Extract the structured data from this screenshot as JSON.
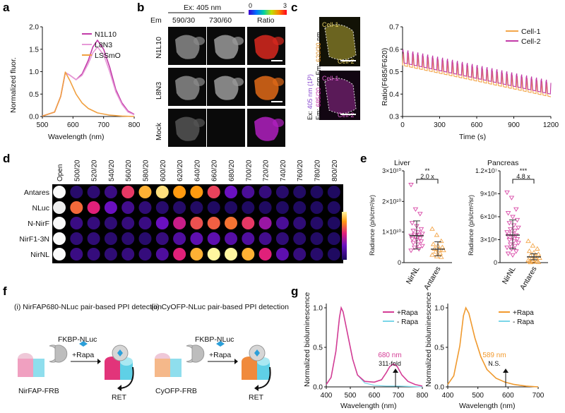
{
  "panel_labels": [
    "a",
    "b",
    "c",
    "d",
    "e",
    "f",
    "g"
  ],
  "chart_data": [
    {
      "id": "a",
      "type": "line",
      "xlabel": "Wavelength (nm)",
      "ylabel": "Normalized fluor.",
      "xlim": [
        500,
        800
      ],
      "ylim": [
        0,
        2.0
      ],
      "xticks": [
        "500",
        "600",
        "700",
        "800"
      ],
      "yticks": [
        "0.0",
        "0.5",
        "1.0",
        "1.5",
        "2.0"
      ],
      "series": [
        {
          "name": "N1L10",
          "color": "#c23aa8",
          "points": [
            [
              500,
              0.01
            ],
            [
              540,
              0.1
            ],
            [
              560,
              0.45
            ],
            [
              575,
              0.98
            ],
            [
              590,
              0.92
            ],
            [
              610,
              0.82
            ],
            [
              630,
              0.95
            ],
            [
              650,
              1.25
            ],
            [
              665,
              1.55
            ],
            [
              680,
              1.7
            ],
            [
              700,
              1.5
            ],
            [
              720,
              1.1
            ],
            [
              740,
              0.6
            ],
            [
              760,
              0.3
            ],
            [
              780,
              0.12
            ],
            [
              800,
              0.05
            ]
          ]
        },
        {
          "name": "L8N3",
          "color": "#e79ad8",
          "points": [
            [
              500,
              0.01
            ],
            [
              540,
              0.1
            ],
            [
              560,
              0.45
            ],
            [
              575,
              0.98
            ],
            [
              590,
              0.92
            ],
            [
              610,
              0.82
            ],
            [
              630,
              0.92
            ],
            [
              650,
              1.18
            ],
            [
              665,
              1.42
            ],
            [
              680,
              1.55
            ],
            [
              700,
              1.38
            ],
            [
              720,
              1.0
            ],
            [
              740,
              0.55
            ],
            [
              760,
              0.27
            ],
            [
              780,
              0.1
            ],
            [
              800,
              0.04
            ]
          ]
        },
        {
          "name": "LSSmO",
          "color": "#f0a040",
          "points": [
            [
              500,
              0.01
            ],
            [
              540,
              0.1
            ],
            [
              560,
              0.45
            ],
            [
              575,
              0.99
            ],
            [
              590,
              0.8
            ],
            [
              610,
              0.5
            ],
            [
              630,
              0.3
            ],
            [
              650,
              0.18
            ],
            [
              680,
              0.08
            ],
            [
              720,
              0.03
            ],
            [
              760,
              0.01
            ],
            [
              800,
              0.0
            ]
          ]
        }
      ]
    },
    {
      "id": "b",
      "type": "table",
      "title": "Ex: 405 nm",
      "em_label": "Em",
      "columns": [
        "590/30",
        "730/60"
      ],
      "ratio_label": "Ratio",
      "ratio_range": [
        "0",
        "3"
      ],
      "rows": [
        "N1L10",
        "L8N3",
        "Mock"
      ]
    },
    {
      "id": "c",
      "type": "line",
      "image_cells": [
        "Cell-1",
        "Cell-2"
      ],
      "side_label_parts": [
        "Ex: ",
        "405 nm (1P)",
        "Em: ",
        "685/20",
        " nm Em: ",
        "620/30",
        " nm"
      ],
      "xlabel": "Time (s)",
      "ylabel": "Ratio(F685/F620)",
      "xlim": [
        0,
        1200
      ],
      "ylim": [
        0.3,
        0.7
      ],
      "xticks": [
        "0",
        "300",
        "600",
        "900",
        "1200"
      ],
      "yticks": [
        "0.3",
        "0.4",
        "0.5",
        "0.6",
        "0.7"
      ],
      "series": [
        {
          "name": "Cell-1",
          "color": "#f3a64a"
        },
        {
          "name": "Cell-2",
          "color": "#c23aa8"
        }
      ]
    },
    {
      "id": "d",
      "type": "heatmap",
      "columns": [
        "Open",
        "500/20",
        "520/20",
        "540/20",
        "560/20",
        "580/20",
        "600/20",
        "620/20",
        "640/20",
        "660/20",
        "680/20",
        "700/20",
        "720/20",
        "740/20",
        "760/20",
        "780/20",
        "800/20"
      ],
      "rows": [
        "Antares",
        "NLuc",
        "N-NirF",
        "NirF1-3N",
        "NirNL"
      ],
      "values": [
        [
          1.0,
          0.05,
          0.07,
          0.12,
          0.6,
          0.85,
          0.95,
          0.8,
          0.8,
          0.62,
          0.3,
          0.18,
          0.1,
          0.05,
          0.03,
          0.02,
          0.02
        ],
        [
          0.9,
          0.7,
          0.55,
          0.3,
          0.15,
          0.08,
          0.05,
          0.04,
          0.03,
          0.02,
          0.02,
          0.02,
          0.02,
          0.02,
          0.02,
          0.02,
          0.02
        ],
        [
          1.0,
          0.12,
          0.1,
          0.08,
          0.1,
          0.12,
          0.3,
          0.5,
          0.65,
          0.68,
          0.72,
          0.6,
          0.4,
          0.18,
          0.08,
          0.04,
          0.02
        ],
        [
          1.0,
          0.08,
          0.08,
          0.06,
          0.06,
          0.05,
          0.1,
          0.2,
          0.25,
          0.25,
          0.22,
          0.2,
          0.15,
          0.08,
          0.05,
          0.03,
          0.02
        ],
        [
          1.0,
          0.12,
          0.1,
          0.08,
          0.1,
          0.1,
          0.2,
          0.55,
          0.85,
          1.0,
          1.0,
          0.85,
          0.55,
          0.25,
          0.1,
          0.05,
          0.02
        ]
      ]
    },
    {
      "id": "e1",
      "type": "scatter",
      "title": "Liver",
      "ylabel": "Radiance (p/s/cm²/sr)",
      "ylim": [
        0,
        30000000000.0
      ],
      "yticks": [
        "0",
        "1×10¹⁰",
        "2×10¹⁰",
        "3×10¹⁰"
      ],
      "categories": [
        "NirNL",
        "Antares"
      ],
      "means": [
        8800000000.0,
        4400000000.0
      ],
      "significance": "**",
      "fold": "2.0 x",
      "series": [
        {
          "name": "NirNL",
          "color": "#d94aa8",
          "values": [
            25500000000.0,
            17500000000.0,
            16000000000.0,
            13000000000.0,
            12000000000.0,
            11000000000.0,
            10500000000.0,
            10000000000.0,
            9500000000.0,
            9200000000.0,
            9000000000.0,
            8800000000.0,
            8500000000.0,
            8000000000.0,
            7800000000.0,
            7500000000.0,
            7000000000.0,
            6500000000.0,
            6000000000.0,
            5500000000.0,
            5000000000.0,
            4500000000.0,
            4000000000.0
          ]
        },
        {
          "name": "Antares",
          "color": "#f3a64a",
          "values": [
            11000000000.0,
            9000000000.0,
            7000000000.0,
            6000000000.0,
            5500000000.0,
            5000000000.0,
            4500000000.0,
            4200000000.0,
            4000000000.0,
            3500000000.0,
            3000000000.0,
            2500000000.0,
            2000000000.0,
            1800000000.0
          ]
        }
      ]
    },
    {
      "id": "e2",
      "type": "scatter",
      "title": "Pancreas",
      "ylabel": "Radiance (p/s/cm²/sr)",
      "ylim": [
        0,
        12000000.0
      ],
      "yticks": [
        "0",
        "3×10⁶",
        "6×10⁶",
        "9×10⁶",
        "1.2×10⁷"
      ],
      "categories": [
        "NirNL",
        "Antares"
      ],
      "means": [
        3600000.0,
        750000.0
      ],
      "significance": "***",
      "fold": "4.8 x",
      "series": [
        {
          "name": "NirNL",
          "color": "#d94aa8",
          "values": [
            9200000.0,
            8500000.0,
            7000000.0,
            6500000.0,
            6000000.0,
            5600000.0,
            5200000.0,
            4900000.0,
            4600000.0,
            4400000.0,
            4200000.0,
            4000000.0,
            3800000.0,
            3600000.0,
            3500000.0,
            3300000.0,
            3100000.0,
            3000000.0,
            2800000.0,
            2600000.0,
            2400000.0,
            2200000.0,
            2000000.0,
            1800000.0,
            1500000.0,
            1200000.0,
            1000000.0
          ]
        },
        {
          "name": "Antares",
          "color": "#f3a64a",
          "values": [
            2800000.0,
            2200000.0,
            1800000.0,
            1500000.0,
            1300000.0,
            1100000.0,
            900000.0,
            800000.0,
            600000.0,
            500000.0,
            400000.0,
            300000.0,
            250000.0,
            200000.0,
            150000.0,
            100000.0,
            50000.0,
            30000.0
          ]
        }
      ]
    },
    {
      "id": "g1",
      "type": "line",
      "xlabel": "Wavelength (nm)",
      "ylabel": "Normalized bioluminescence",
      "xlim": [
        400,
        800
      ],
      "ylim": [
        0,
        1.0
      ],
      "xticks": [
        "400",
        "500",
        "600",
        "700",
        "800"
      ],
      "yticks": [
        "0.0",
        "0.5",
        "1.0"
      ],
      "annotation_peak": "680 nm",
      "annotation_fold": "311-fold",
      "series": [
        {
          "name": "+Rapa",
          "color": "#d43c95",
          "points": [
            [
              400,
              0.03
            ],
            [
              420,
              0.12
            ],
            [
              440,
              0.45
            ],
            [
              455,
              0.88
            ],
            [
              462,
              1.0
            ],
            [
              470,
              0.95
            ],
            [
              490,
              0.65
            ],
            [
              510,
              0.35
            ],
            [
              530,
              0.15
            ],
            [
              560,
              0.07
            ],
            [
              600,
              0.06
            ],
            [
              630,
              0.09
            ],
            [
              650,
              0.18
            ],
            [
              665,
              0.26
            ],
            [
              680,
              0.29
            ],
            [
              695,
              0.26
            ],
            [
              715,
              0.15
            ],
            [
              740,
              0.07
            ],
            [
              770,
              0.03
            ],
            [
              800,
              0.01
            ]
          ]
        },
        {
          "name": "- Rapa",
          "color": "#7ad6e8",
          "points": [
            [
              400,
              0.03
            ],
            [
              420,
              0.12
            ],
            [
              440,
              0.45
            ],
            [
              455,
              0.88
            ],
            [
              462,
              1.0
            ],
            [
              470,
              0.95
            ],
            [
              490,
              0.65
            ],
            [
              510,
              0.35
            ],
            [
              530,
              0.15
            ],
            [
              560,
              0.05
            ],
            [
              600,
              0.02
            ],
            [
              650,
              0.01
            ],
            [
              700,
              0.01
            ],
            [
              800,
              0.0
            ]
          ]
        }
      ]
    },
    {
      "id": "g2",
      "type": "line",
      "xlabel": "Wavelength (nm)",
      "ylabel": "Normalized bioluminescence",
      "xlim": [
        400,
        700
      ],
      "ylim": [
        0,
        1.0
      ],
      "xticks": [
        "400",
        "500",
        "600",
        "700"
      ],
      "yticks": [
        "0.0",
        "0.5",
        "1.0"
      ],
      "annotation_peak": "589 nm",
      "annotation_fold": "N.S.",
      "series": [
        {
          "name": "+Rapa",
          "color": "#f29a2e",
          "points": [
            [
              400,
              0.03
            ],
            [
              420,
              0.14
            ],
            [
              440,
              0.52
            ],
            [
              452,
              0.9
            ],
            [
              460,
              1.0
            ],
            [
              470,
              0.93
            ],
            [
              490,
              0.62
            ],
            [
              510,
              0.38
            ],
            [
              530,
              0.22
            ],
            [
              560,
              0.11
            ],
            [
              590,
              0.06
            ],
            [
              620,
              0.03
            ],
            [
              660,
              0.01
            ],
            [
              700,
              0.0
            ]
          ]
        },
        {
          "name": "- Rapa",
          "color": "#7ad6e8",
          "points": [
            [
              400,
              0.03
            ],
            [
              420,
              0.14
            ],
            [
              440,
              0.52
            ],
            [
              452,
              0.9
            ],
            [
              460,
              1.0
            ],
            [
              470,
              0.93
            ],
            [
              490,
              0.62
            ],
            [
              510,
              0.38
            ],
            [
              530,
              0.22
            ],
            [
              560,
              0.11
            ],
            [
              590,
              0.06
            ],
            [
              620,
              0.03
            ],
            [
              660,
              0.01
            ],
            [
              700,
              0.0
            ]
          ]
        }
      ]
    }
  ],
  "panel_f": {
    "title_i": "(i) NirFAP680-NLuc pair-based PPI detection",
    "title_ii": "(ii) CyOFP-NLuc pair-based PPI detection",
    "fkbp": "FKBP-NLuc",
    "rapa": "+Rapa",
    "acceptor_i": "NirFAP-FRB",
    "acceptor_ii": "CyOFP-FRB",
    "ret": "RET",
    "colors": {
      "nirfap": "#e2347a",
      "cyofp": "#f08a3c",
      "frb": "#5fd0e6",
      "nluc": "#d9d9d9",
      "rapa": "#2b9fd9"
    }
  }
}
